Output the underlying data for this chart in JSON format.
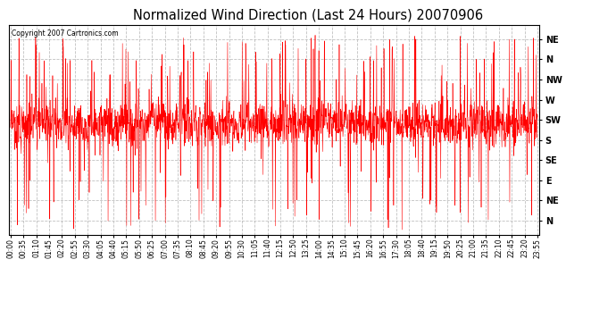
{
  "title": "Normalized Wind Direction (Last 24 Hours) 20070906",
  "copyright": "Copyright 2007 Cartronics.com",
  "line_color": "#ff0000",
  "background_color": "#ffffff",
  "plot_bg_color": "#ffffff",
  "grid_color": "#b0b0b0",
  "ytick_labels": [
    "NE",
    "N",
    "NW",
    "W",
    "SW",
    "S",
    "SE",
    "E",
    "NE",
    "N"
  ],
  "ytick_values": [
    10,
    9,
    8,
    7,
    6,
    5,
    4,
    3,
    2,
    1
  ],
  "ylim": [
    0.3,
    10.7
  ],
  "xtick_labels": [
    "00:00",
    "00:35",
    "01:10",
    "01:45",
    "02:20",
    "02:55",
    "03:30",
    "04:05",
    "04:40",
    "05:15",
    "05:50",
    "06:25",
    "07:00",
    "07:35",
    "08:10",
    "08:45",
    "09:20",
    "09:55",
    "10:30",
    "11:05",
    "11:40",
    "12:15",
    "12:50",
    "13:25",
    "14:00",
    "14:35",
    "15:10",
    "15:45",
    "16:20",
    "16:55",
    "17:30",
    "18:05",
    "18:40",
    "19:15",
    "19:50",
    "20:25",
    "21:00",
    "21:35",
    "22:10",
    "22:45",
    "23:20",
    "23:55"
  ],
  "num_points": 2016,
  "seed": 7,
  "base_val": 5.8,
  "tight_sigma": 0.55,
  "wide_sigma": 1.2,
  "spike_prob_up": 0.04,
  "spike_prob_down": 0.03,
  "spike_up_min": 7.5,
  "spike_up_max": 10.2,
  "spike_down_min": 0.5,
  "spike_down_max": 3.5
}
